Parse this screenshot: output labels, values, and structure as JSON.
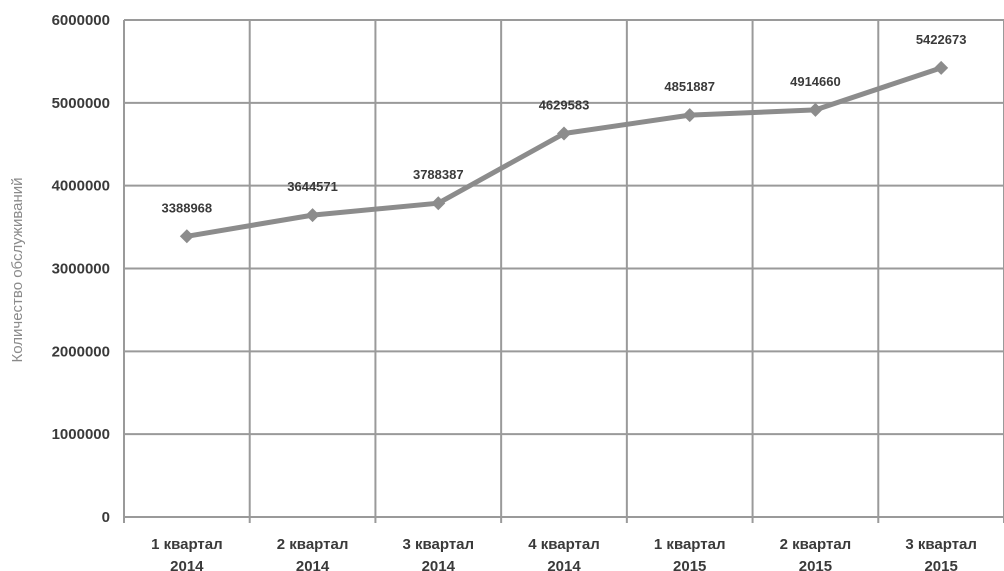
{
  "chart_data": {
    "type": "line",
    "title": "",
    "xlabel": "",
    "ylabel": "Количество обслуживаний",
    "ylim": [
      0,
      6000000
    ],
    "yticks": [
      "0",
      "1000000",
      "2000000",
      "3000000",
      "4000000",
      "5000000",
      "6000000"
    ],
    "categories": [
      [
        "1 квартал",
        "2014"
      ],
      [
        "2 квартал",
        "2014"
      ],
      [
        "3 квартал",
        "2014"
      ],
      [
        "4 квартал",
        "2014"
      ],
      [
        "1 квартал",
        "2015"
      ],
      [
        "2 квартал",
        "2015"
      ],
      [
        "3 квартал",
        "2015"
      ]
    ],
    "series": [
      {
        "values": [
          3388968,
          3644571,
          3788387,
          4629583,
          4851887,
          4914660,
          5422673
        ],
        "labels": [
          "3388968",
          "3644571",
          "3788387",
          "4629583",
          "4851887",
          "4914660",
          "5422673"
        ],
        "color": "#8c8c8c",
        "marker": "diamond"
      }
    ],
    "grid": true,
    "gridColor": "#9a9a9a"
  }
}
